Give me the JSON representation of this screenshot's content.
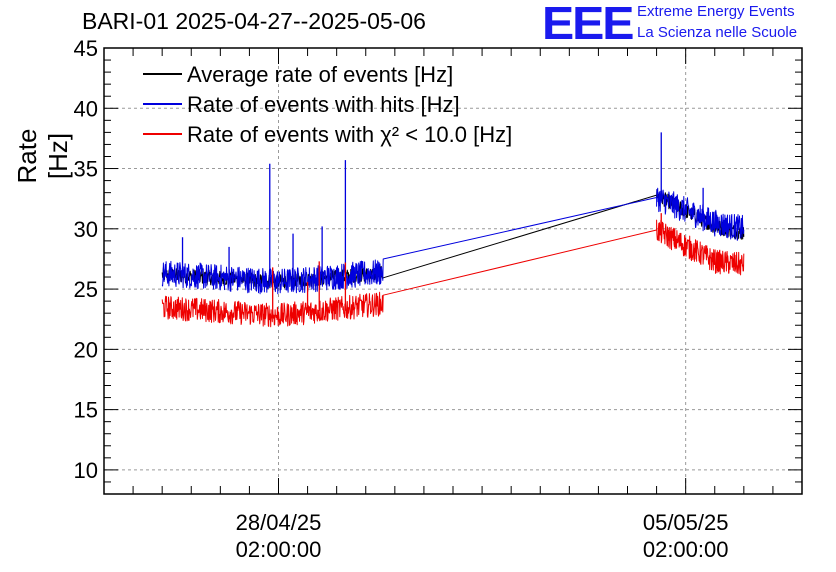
{
  "chart_data": {
    "type": "line",
    "title": "BARI-01 2025-04-27--2025-05-06",
    "ylabel": "Rate [Hz]",
    "xlabel": "",
    "ylim": [
      8,
      45
    ],
    "yticks": [
      10,
      15,
      20,
      25,
      30,
      35,
      40,
      45
    ],
    "xlim_days": [
      0,
      12
    ],
    "xticks": [
      {
        "day": 3.0,
        "line1": "28/04/25",
        "line2": "02:00:00"
      },
      {
        "day": 10.0,
        "line1": "05/05/25",
        "line2": "02:00:00"
      }
    ],
    "grid": true,
    "legend_position": "top-left",
    "series": [
      {
        "name": "Average rate of events [Hz]",
        "color": "#000000",
        "points": [
          [
            1.0,
            26.2
          ],
          [
            3.0,
            25.6
          ],
          [
            4.8,
            26.3
          ],
          [
            9.5,
            32.8
          ],
          [
            10.5,
            30.2
          ],
          [
            11.0,
            29.6
          ]
        ],
        "noise": 0.6
      },
      {
        "name": "Rate of events with hits [Hz]",
        "color": "#0000dd",
        "points": [
          [
            1.0,
            26.3
          ],
          [
            3.0,
            25.6
          ],
          [
            4.8,
            26.4
          ],
          [
            9.5,
            32.6
          ],
          [
            10.5,
            30.5
          ],
          [
            11.0,
            30.0
          ]
        ],
        "noise": 1.1,
        "spikes": [
          [
            1.35,
            29.3
          ],
          [
            2.15,
            28.5
          ],
          [
            2.85,
            35.4
          ],
          [
            3.25,
            29.6
          ],
          [
            3.75,
            30.2
          ],
          [
            4.15,
            35.7
          ],
          [
            9.58,
            38.0
          ],
          [
            10.3,
            33.4
          ]
        ]
      },
      {
        "name": "Rate of events with χ² < 10.0 [Hz]",
        "color": "#ee0000",
        "points": [
          [
            1.0,
            23.5
          ],
          [
            3.0,
            22.8
          ],
          [
            4.8,
            23.8
          ],
          [
            9.5,
            29.9
          ],
          [
            10.5,
            27.3
          ],
          [
            11.0,
            27.0
          ]
        ],
        "noise": 1.0,
        "spikes": [
          [
            2.9,
            26.8
          ],
          [
            3.5,
            25.6
          ],
          [
            3.7,
            27.3
          ],
          [
            4.15,
            27.2
          ],
          [
            9.58,
            31.3
          ]
        ]
      }
    ],
    "legend": [
      {
        "label": "Average rate of events [Hz]",
        "color": "#000000"
      },
      {
        "label": "Rate of events with hits [Hz]",
        "color": "#0000dd"
      },
      {
        "label": "Rate of events with χ² < 10.0 [Hz]",
        "color": "#ee0000"
      }
    ]
  },
  "header": {
    "title": "BARI-01 2025-04-27--2025-05-06",
    "logo": "EEE",
    "org_line1": "Extreme Energy Events",
    "org_line2": "La Scienza nelle Scuole"
  }
}
